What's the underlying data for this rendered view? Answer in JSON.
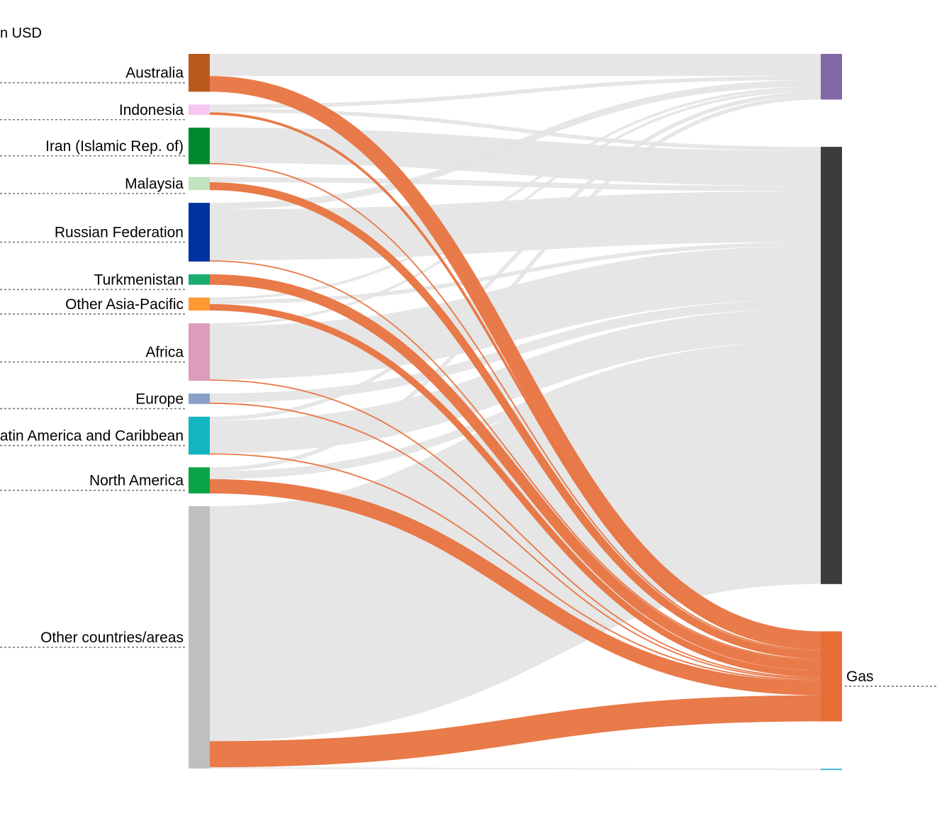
{
  "unit_label": "n USD",
  "colors": {
    "highlight_link": "#e8733f",
    "muted_link": "#e3e3e3",
    "guide_line": "#777777"
  },
  "chart_data": {
    "type": "sankey",
    "highlighted_target": "Gas",
    "sources": [
      {
        "name": "Australia",
        "color": "#b85a1b",
        "flows": {
          "top": 17,
          "mid": 0,
          "gas": 12,
          "low": 0
        }
      },
      {
        "name": "Indonesia",
        "color": "#f7c6f0",
        "flows": {
          "top": 3,
          "mid": 3,
          "gas": 2,
          "low": 0
        }
      },
      {
        "name": "Iran (Islamic Rep. of)",
        "color": "#008a2e",
        "flows": {
          "top": 0,
          "mid": 27,
          "gas": 1,
          "low": 0
        }
      },
      {
        "name": "Malaysia",
        "color": "#c2e2c0",
        "flows": {
          "top": 0,
          "mid": 4,
          "gas": 6,
          "low": 0
        }
      },
      {
        "name": "Russian Federation",
        "color": "#0033a0",
        "flows": {
          "top": 5,
          "mid": 39,
          "gas": 1,
          "low": 0
        }
      },
      {
        "name": "Turkmenistan",
        "color": "#1aad6f",
        "flows": {
          "top": 0,
          "mid": 0,
          "gas": 8,
          "low": 0
        }
      },
      {
        "name": "Other Asia-Pacific",
        "color": "#ff9a33",
        "flows": {
          "top": 2,
          "mid": 3,
          "gas": 5,
          "low": 0
        }
      },
      {
        "name": "Africa",
        "color": "#dc9cbe",
        "flows": {
          "top": 2,
          "mid": 41,
          "gas": 1,
          "low": 0
        }
      },
      {
        "name": "Europe",
        "color": "#8aa0c8",
        "flows": {
          "top": 0,
          "mid": 7,
          "gas": 1,
          "low": 0
        }
      },
      {
        "name": "Latin America and Caribbean",
        "color": "#13b5c0",
        "flows": {
          "top": 3,
          "mid": 25,
          "gas": 1,
          "low": 0
        }
      },
      {
        "name": "North America",
        "color": "#0ba347",
        "flows": {
          "top": 3,
          "mid": 6,
          "gas": 11,
          "low": 0
        }
      },
      {
        "name": "Other countries/areas",
        "color": "#bebfc1",
        "flows": {
          "top": 0,
          "mid": 180,
          "gas": 20,
          "low": 1
        }
      }
    ],
    "targets": [
      {
        "key": "top",
        "name": "",
        "color": "#8268a6"
      },
      {
        "key": "mid",
        "name": "",
        "color": "#3c3c3c"
      },
      {
        "key": "gas",
        "name": "Gas",
        "color": "#e86d36"
      },
      {
        "key": "low",
        "name": "",
        "color": "#3fb6de"
      }
    ]
  }
}
